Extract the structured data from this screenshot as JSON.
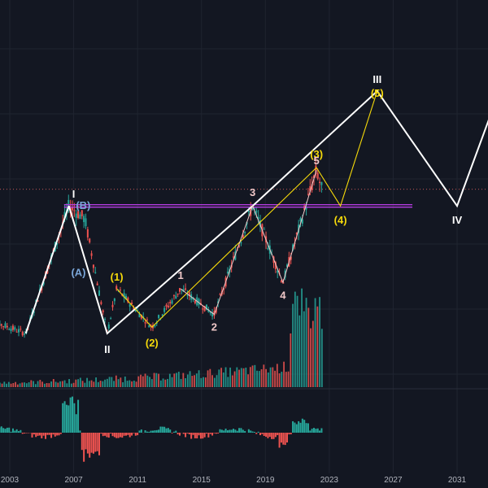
{
  "chart_data": {
    "type": "line",
    "colors": {
      "background": "#131722",
      "grid": "#1f2430",
      "primary_wave": "#ffffff",
      "intermediate_wave": "#f5d90a",
      "minor_wave": "#f0c8c8",
      "corrective": "#7aa6d8",
      "horizontal_level": "#b43ce0",
      "dotted_level": "#ff6b6b",
      "price_up": "#26a69a",
      "price_down": "#ef5350"
    },
    "x_axis": {
      "ticks": [
        "2003",
        "2007",
        "2011",
        "2015",
        "2019",
        "2023",
        "2027",
        "2031"
      ]
    },
    "wave_labels": {
      "primary": [
        "I",
        "II",
        "III",
        "IV"
      ],
      "intermediate": [
        "(1)",
        "(2)",
        "(3)",
        "(4)",
        "(5)"
      ],
      "minor": [
        "1",
        "2",
        "3",
        "4",
        "5"
      ],
      "corrective": [
        "(A)",
        "(B)"
      ]
    },
    "series": [
      {
        "style": "primary",
        "x": [
          2006.7,
          2009.1,
          2018.2,
          2026.0,
          2031.0,
          2033.5
        ],
        "y": [
          1.0,
          0.0,
          1.0,
          1.9,
          1.0,
          1.85
        ]
      },
      {
        "style": "intermediate",
        "x": [
          2009.7,
          2011.9,
          2022.2,
          2023.7,
          2026.0
        ],
        "y": [
          0.35,
          0.05,
          1.3,
          1.0,
          1.9
        ]
      },
      {
        "style": "minor",
        "x": [
          2013.7,
          2015.8,
          2018.2,
          2020.1,
          2022.2
        ],
        "y": [
          0.35,
          0.15,
          1.0,
          0.4,
          1.28
        ]
      }
    ]
  }
}
